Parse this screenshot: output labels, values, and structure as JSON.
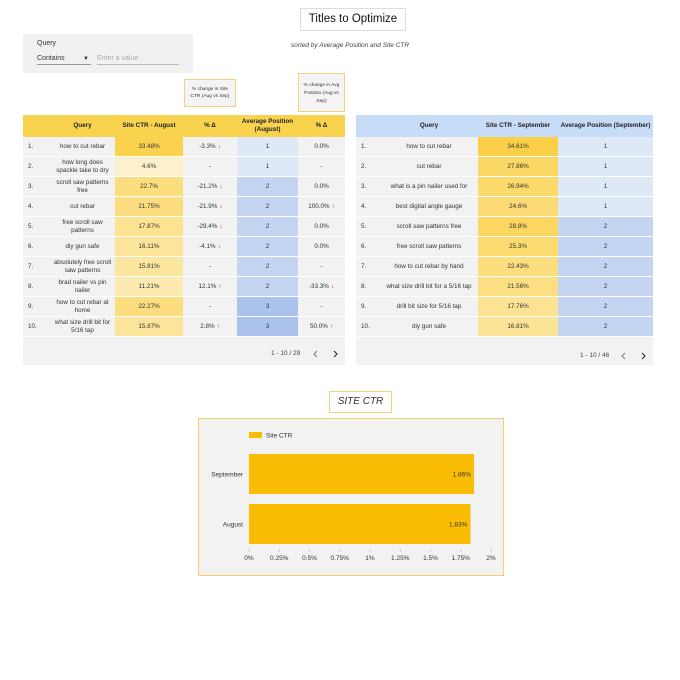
{
  "header": {
    "title": "Titles to Optimize",
    "subtitle": "sorted by Average Position and Site CTR"
  },
  "filter": {
    "label": "Query",
    "operator": "Contains",
    "placeholder": "Enter a value"
  },
  "notes": [
    "% change in Site CTR (Aug vs Sep)",
    "% change in Avg Position (Aug vs Sep)"
  ],
  "august_table": {
    "columns": [
      "Query",
      "Site CTR - August",
      "% Δ",
      "Average Position (August)",
      "% Δ"
    ],
    "rows": [
      {
        "n": "1.",
        "query": "how to cut rebar",
        "ctr": "33.48%",
        "ctr_change": "-3.3%",
        "ctr_arrow": "↓",
        "pos": "1",
        "pos_change": "0.0%"
      },
      {
        "n": "2.",
        "query": "how long does spackle take to dry",
        "ctr": "4.6%",
        "ctr_change": "-",
        "pos": "1",
        "pos_change": "-"
      },
      {
        "n": "3.",
        "query": "scroll saw patterns free",
        "ctr": "22.7%",
        "ctr_change": "-21.2%",
        "ctr_arrow": "↓",
        "pos": "2",
        "pos_change": "0.0%"
      },
      {
        "n": "4.",
        "query": "cut rebar",
        "ctr": "21.75%",
        "ctr_change": "-21.9%",
        "ctr_arrow": "↓",
        "pos": "2",
        "pos_change": "100.0%",
        "pos_arrow": "↑"
      },
      {
        "n": "5.",
        "query": "free scroll saw patterns",
        "ctr": "17.87%",
        "ctr_change": "-29.4%",
        "ctr_arrow": "↓",
        "pos": "2",
        "pos_change": "0.0%"
      },
      {
        "n": "6.",
        "query": "diy gun safe",
        "ctr": "16.11%",
        "ctr_change": "-4.1%",
        "ctr_arrow": "↓",
        "pos": "2",
        "pos_change": "0.0%"
      },
      {
        "n": "7.",
        "query": "absolutely free scroll saw patterns",
        "ctr": "15.81%",
        "ctr_change": "-",
        "pos": "2",
        "pos_change": "-"
      },
      {
        "n": "8.",
        "query": "brad nailer vs pin nailer",
        "ctr": "11.21%",
        "ctr_change": "12.1%",
        "ctr_arrow": "↑",
        "pos": "2",
        "pos_change": "-33.3%",
        "pos_arrow": "↓"
      },
      {
        "n": "9.",
        "query": "how to cut rebar at home",
        "ctr": "22.27%",
        "ctr_change": "-",
        "pos": "3",
        "pos_change": "-"
      },
      {
        "n": "10.",
        "query": "what size drill bit for 5/16 tap",
        "ctr": "15.87%",
        "ctr_change": "2.8%",
        "ctr_arrow": "↑",
        "pos": "3",
        "pos_change": "50.0%",
        "pos_arrow": "↑"
      }
    ],
    "pagination": "1 - 10 / 29"
  },
  "september_table": {
    "columns": [
      "Query",
      "Site CTR - September",
      "Average Position (September)"
    ],
    "rows": [
      {
        "n": "1.",
        "query": "how to cut rebar",
        "ctr": "34.61%",
        "pos": "1"
      },
      {
        "n": "2.",
        "query": "cut rebar",
        "ctr": "27.86%",
        "pos": "1"
      },
      {
        "n": "3.",
        "query": "what is a pin nailer used for",
        "ctr": "26.94%",
        "pos": "1"
      },
      {
        "n": "4.",
        "query": "best digital angle gauge",
        "ctr": "24.6%",
        "pos": "1"
      },
      {
        "n": "5.",
        "query": "scroll saw patterns free",
        "ctr": "28.8%",
        "pos": "2"
      },
      {
        "n": "6.",
        "query": "free scroll saw patterns",
        "ctr": "25.3%",
        "pos": "2"
      },
      {
        "n": "7.",
        "query": "how to cut rebar by hand",
        "ctr": "22.43%",
        "pos": "2"
      },
      {
        "n": "8.",
        "query": "what size drill bit for a 5/16 tap",
        "ctr": "21.56%",
        "pos": "2"
      },
      {
        "n": "9.",
        "query": "drill bit size for 5/16 tap",
        "ctr": "17.76%",
        "pos": "2"
      },
      {
        "n": "10.",
        "query": "diy gun safe",
        "ctr": "16.81%",
        "pos": "2"
      }
    ],
    "pagination": "1 - 10 / 46"
  },
  "chart_data": {
    "type": "bar",
    "orientation": "horizontal",
    "title": "SITE CTR",
    "categories": [
      "September",
      "August"
    ],
    "series": [
      {
        "name": "Site CTR",
        "color": "#fbbc04",
        "values": [
          1.86,
          1.83
        ],
        "value_labels": [
          "1.86%",
          "1.83%"
        ]
      }
    ],
    "xlim": [
      0,
      2
    ],
    "xticks": [
      {
        "value": 0,
        "label": "0%"
      },
      {
        "value": 0.25,
        "label": "0.25%"
      },
      {
        "value": 0.5,
        "label": "0.5%"
      },
      {
        "value": 0.75,
        "label": "0.75%"
      },
      {
        "value": 1,
        "label": "1%"
      },
      {
        "value": 1.25,
        "label": "1.25%"
      },
      {
        "value": 1.5,
        "label": "1.5%"
      },
      {
        "value": 1.75,
        "label": "1.75%"
      },
      {
        "value": 2,
        "label": "2%"
      }
    ]
  }
}
